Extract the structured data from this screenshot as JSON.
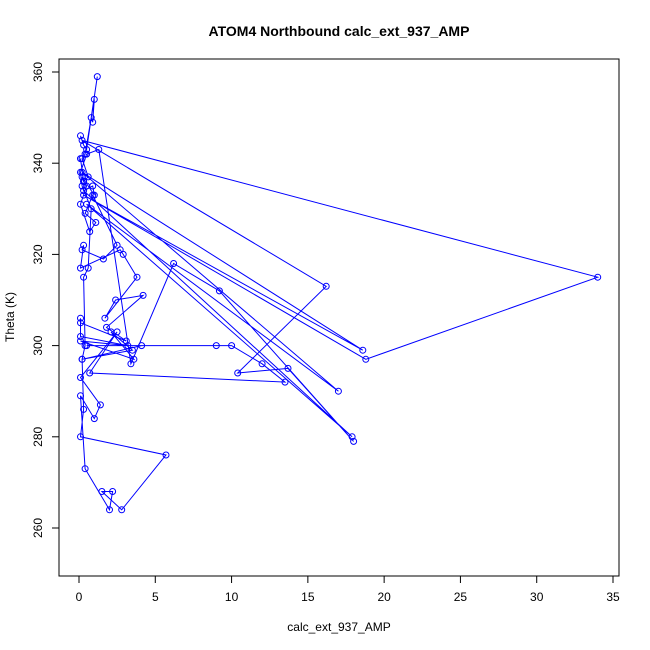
{
  "chart_data": {
    "type": "line",
    "title": "ATOM4 Northbound calc_ext_937_AMP",
    "xlabel": "calc_ext_937_AMP",
    "ylabel": "Theta (K)",
    "xlim": [
      0,
      35
    ],
    "ylim": [
      250,
      362
    ],
    "xticks": [
      0,
      5,
      10,
      15,
      20,
      25,
      30,
      35
    ],
    "yticks": [
      260,
      280,
      300,
      320,
      340,
      360
    ],
    "grid": false,
    "legend": "none",
    "color": "#0000ff",
    "marker": "open-circle",
    "series": [
      {
        "x": [
          0.1,
          0.3,
          0.5,
          1.2,
          0.8,
          0.9,
          1.0,
          0.4,
          0.2,
          0.6,
          0.3,
          0.5,
          0.1,
          0.7,
          1.1,
          0.4,
          0.9,
          2.5,
          1.6,
          0.2,
          0.3,
          0.1,
          2.7,
          2.9,
          3.8,
          1.7,
          2.4,
          4.2,
          1.8,
          3.1,
          0.1,
          0.1,
          0.1,
          3.2,
          0.1,
          3.6,
          2.1,
          3.5,
          0.2,
          4.1,
          0.5,
          9.0,
          10.0,
          12.0,
          13.5,
          0.7,
          2.5,
          0.1,
          1.4,
          1.0,
          0.1,
          0.4,
          2.0,
          2.2,
          1.5,
          2.8,
          5.7,
          0.1,
          0.3,
          0.2,
          0.4,
          0.3,
          0.6,
          0.8,
          0.2,
          0.1,
          0.5,
          1.3,
          3.4,
          6.2,
          9.2,
          18.0,
          13.7,
          10.4,
          16.2,
          0.2,
          34.0,
          18.8,
          0.3,
          18.6,
          0.2,
          17.0,
          0.5,
          17.9,
          0.3,
          0.9,
          1.0,
          0.2,
          0.3,
          0.1
        ],
        "y": [
          346,
          344,
          343,
          359,
          350,
          349,
          354,
          342,
          341,
          337,
          336,
          335,
          331,
          325,
          327,
          329,
          333,
          322,
          319,
          321,
          322,
          317,
          321,
          320,
          315,
          306,
          310,
          311,
          304,
          301,
          305,
          306,
          302,
          300,
          301,
          297,
          303,
          299,
          297,
          300,
          300,
          300,
          300,
          296,
          292,
          294,
          303,
          293,
          287,
          284,
          289,
          273,
          264,
          268,
          268,
          264,
          276,
          280,
          286,
          297,
          300,
          315,
          317,
          330,
          335,
          338,
          342,
          343,
          296,
          318,
          312,
          279,
          295,
          294,
          313,
          345,
          315,
          297,
          333,
          299,
          338,
          290,
          331,
          280,
          334,
          335,
          333,
          337,
          336,
          341
        ]
      }
    ]
  }
}
